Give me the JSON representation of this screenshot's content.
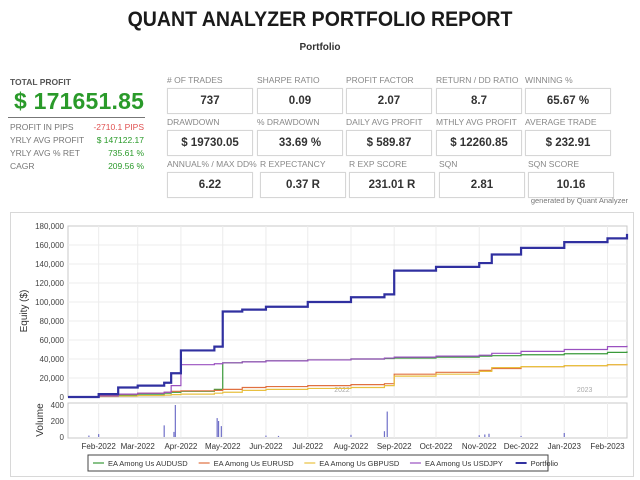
{
  "header": {
    "title": "QUANT ANALYZER PORTFOLIO REPORT",
    "subtitle": "Portfolio"
  },
  "summary": {
    "total_profit_label": "TOTAL PROFIT",
    "total_profit_value": "$ 171651.85",
    "rows": [
      {
        "label": "PROFIT IN PIPS",
        "value": "-2710.1 PIPS",
        "color": "#e05050"
      },
      {
        "label": "YRLY AVG PROFIT",
        "value": "$ 147122.17",
        "color": "#2a9a2a"
      },
      {
        "label": "YRLY AVG % RET",
        "value": "735.61 %",
        "color": "#2a9a2a"
      },
      {
        "label": "CAGR",
        "value": "209.56 %",
        "color": "#2a9a2a"
      }
    ]
  },
  "metrics": [
    {
      "label": "# OF TRADES",
      "value": "737"
    },
    {
      "label": "SHARPE RATIO",
      "value": "0.09"
    },
    {
      "label": "PROFIT FACTOR",
      "value": "2.07"
    },
    {
      "label": "RETURN / DD RATIO",
      "value": "8.7"
    },
    {
      "label": "WINNING %",
      "value": "65.67 %"
    },
    {
      "label": "DRAWDOWN",
      "value": "$ 19730.05"
    },
    {
      "label": "% DRAWDOWN",
      "value": "33.69 %"
    },
    {
      "label": "DAILY AVG PROFIT",
      "value": "$ 589.87"
    },
    {
      "label": "MTHLY AVG PROFIT",
      "value": "$ 12260.85"
    },
    {
      "label": "AVERAGE TRADE",
      "value": "$ 232.91"
    },
    {
      "label": "ANNUAL% / MAX DD%",
      "value": "6.22"
    },
    {
      "label": "R EXPECTANCY",
      "value": "0.37 R"
    },
    {
      "label": "R EXP SCORE",
      "value": "231.01 R"
    },
    {
      "label": "SQN",
      "value": "2.81"
    },
    {
      "label": "SQN SCORE",
      "value": "10.16"
    }
  ],
  "footer_note": "generated by Quant Analyzer",
  "chart_data": [
    {
      "type": "line",
      "title": "",
      "xlabel": "",
      "ylabel": "Equity ($)",
      "ylim": [
        0,
        180000
      ],
      "yticks": [
        "0",
        "20,000",
        "40,000",
        "60,000",
        "80,000",
        "100,000",
        "120,000",
        "140,000",
        "160,000",
        "180,000"
      ],
      "grid": true,
      "year_markers": [
        "2022",
        "2023"
      ],
      "x": [
        "2022-01-10",
        "2022-02-01",
        "2022-02-15",
        "2022-03-01",
        "2022-03-20",
        "2022-03-25",
        "2022-04-01",
        "2022-04-25",
        "2022-05-01",
        "2022-05-15",
        "2022-06-01",
        "2022-07-01",
        "2022-08-01",
        "2022-08-25",
        "2022-09-01",
        "2022-10-01",
        "2022-11-01",
        "2022-11-10",
        "2022-12-01",
        "2023-01-01",
        "2023-02-01",
        "2023-02-15"
      ],
      "series": [
        {
          "name": "EA Among Us  AUDUSD",
          "color": "#3a9a3a",
          "values": [
            0,
            1000,
            2000,
            3000,
            4000,
            5000,
            6000,
            8000,
            36000,
            37000,
            38000,
            39000,
            40000,
            40500,
            41000,
            42000,
            43000,
            43500,
            44500,
            45500,
            47000,
            48000
          ]
        },
        {
          "name": "EA Among Us  EURUSD",
          "color": "#e07040",
          "values": [
            0,
            1500,
            3000,
            4000,
            5000,
            6000,
            6500,
            7000,
            8000,
            10000,
            11000,
            12000,
            13000,
            14000,
            24000,
            26000,
            28000,
            30000,
            32000,
            33000,
            34000,
            34500
          ]
        },
        {
          "name": "EA Among Us  GBPUSD",
          "color": "#e8c040",
          "values": [
            0,
            500,
            1000,
            1500,
            2000,
            2500,
            3000,
            4000,
            5000,
            7000,
            8000,
            9000,
            10000,
            12000,
            22000,
            24000,
            27000,
            31000,
            32000,
            33000,
            34000,
            35000
          ]
        },
        {
          "name": "EA Among Us  USDJPY",
          "color": "#9a50c0",
          "values": [
            0,
            1000,
            3000,
            4000,
            5000,
            12000,
            34000,
            35000,
            36000,
            37000,
            38000,
            39000,
            40000,
            41000,
            42000,
            43000,
            44000,
            46000,
            48000,
            50000,
            53000,
            54000
          ]
        },
        {
          "name": "Portfolio",
          "color": "#3030a0",
          "values": [
            0,
            3000,
            10000,
            12000,
            15000,
            25000,
            49000,
            53000,
            90000,
            92000,
            95000,
            100000,
            105000,
            108000,
            133000,
            137000,
            141000,
            150000,
            157000,
            163000,
            167000,
            171652
          ]
        }
      ]
    },
    {
      "type": "bar",
      "title": "",
      "xlabel": "",
      "ylabel": "Volume",
      "ylim": [
        0,
        400
      ],
      "yticks": [
        "0",
        "200",
        "400"
      ],
      "categories": [
        "Feb-2022",
        "Mar-2022",
        "Apr-2022",
        "May-2022",
        "Jun-2022",
        "Jul-2022",
        "Aug-2022",
        "Sep-2022",
        "Oct-2022",
        "Nov-2022",
        "Dec-2022",
        "Jan-2023",
        "Feb-2023"
      ],
      "spikes": [
        {
          "date": "2022-01-25",
          "value": 20
        },
        {
          "date": "2022-02-01",
          "value": 40
        },
        {
          "date": "2022-03-20",
          "value": 160
        },
        {
          "date": "2022-03-27",
          "value": 70
        },
        {
          "date": "2022-03-28",
          "value": 440
        },
        {
          "date": "2022-04-27",
          "value": 260
        },
        {
          "date": "2022-04-28",
          "value": 220
        },
        {
          "date": "2022-04-30",
          "value": 150
        },
        {
          "date": "2022-06-01",
          "value": 20
        },
        {
          "date": "2022-06-10",
          "value": 15
        },
        {
          "date": "2022-08-01",
          "value": 30
        },
        {
          "date": "2022-08-25",
          "value": 80
        },
        {
          "date": "2022-08-27",
          "value": 350
        },
        {
          "date": "2022-11-01",
          "value": 25
        },
        {
          "date": "2022-11-05",
          "value": 35
        },
        {
          "date": "2022-11-08",
          "value": 45
        },
        {
          "date": "2022-12-01",
          "value": 15
        },
        {
          "date": "2023-01-01",
          "value": 55
        }
      ]
    }
  ],
  "legend": [
    {
      "label": "EA Among Us  AUDUSD",
      "color": "#3a9a3a"
    },
    {
      "label": "EA Among Us  EURUSD",
      "color": "#e07040"
    },
    {
      "label": "EA Among Us  GBPUSD",
      "color": "#e8c040"
    },
    {
      "label": "EA Among Us  USDJPY",
      "color": "#9a50c0"
    },
    {
      "label": "Portfolio",
      "color": "#3030a0"
    }
  ]
}
